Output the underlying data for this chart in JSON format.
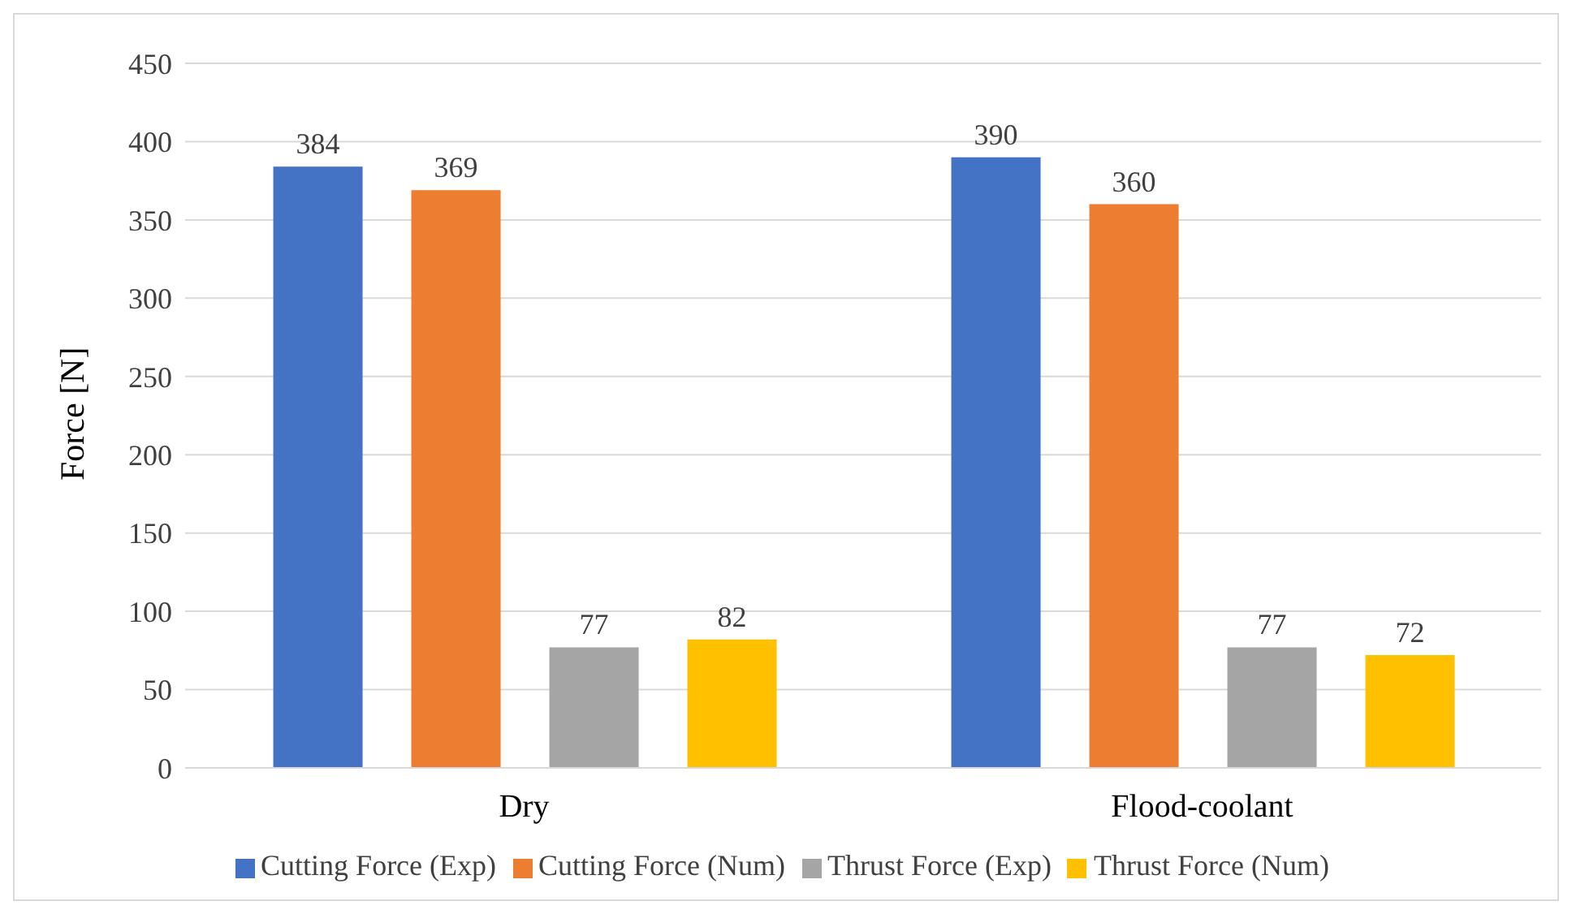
{
  "chart_data": {
    "type": "bar",
    "ylabel": "Force [N]",
    "categories": [
      "Dry",
      "Flood-coolant"
    ],
    "series": [
      {
        "name": "Cutting Force (Exp)",
        "color": "#4472c4",
        "values": [
          384,
          390
        ]
      },
      {
        "name": "Cutting Force (Num)",
        "color": "#ed7d31",
        "values": [
          369,
          360
        ]
      },
      {
        "name": "Thrust Force (Exp)",
        "color": "#a5a5a5",
        "values": [
          77,
          77
        ]
      },
      {
        "name": "Thrust Force (Num)",
        "color": "#ffc000",
        "values": [
          82,
          72
        ]
      }
    ],
    "ylim": [
      0,
      450
    ],
    "yticks": [
      0,
      50,
      100,
      150,
      200,
      250,
      300,
      350,
      400,
      450
    ],
    "grid": "y",
    "legend": "bottom",
    "data_labels": true
  }
}
